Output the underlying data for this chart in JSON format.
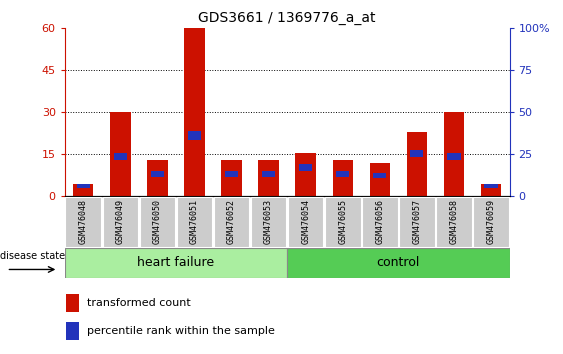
{
  "title": "GDS3661 / 1369776_a_at",
  "samples": [
    "GSM476048",
    "GSM476049",
    "GSM476050",
    "GSM476051",
    "GSM476052",
    "GSM476053",
    "GSM476054",
    "GSM476055",
    "GSM476056",
    "GSM476057",
    "GSM476058",
    "GSM476059"
  ],
  "red_values": [
    4.5,
    30.0,
    13.0,
    60.0,
    13.0,
    13.0,
    15.5,
    13.0,
    12.0,
    23.0,
    30.0,
    4.5
  ],
  "blue_bottoms": [
    3.0,
    13.0,
    7.0,
    20.0,
    7.0,
    7.0,
    9.0,
    7.0,
    6.5,
    14.0,
    13.0,
    3.0
  ],
  "blue_heights": [
    1.5,
    2.5,
    2.0,
    3.5,
    2.0,
    2.0,
    2.5,
    2.0,
    2.0,
    2.5,
    2.5,
    1.5
  ],
  "heart_failure_count": 6,
  "control_count": 6,
  "ylim_left": [
    0,
    60
  ],
  "ylim_right": [
    0,
    100
  ],
  "yticks_left": [
    0,
    15,
    30,
    45,
    60
  ],
  "yticks_right": [
    0,
    25,
    50,
    75,
    100
  ],
  "bar_color_red": "#CC1100",
  "bar_color_blue": "#2233BB",
  "bar_width": 0.55,
  "legend_labels": [
    "transformed count",
    "percentile rank within the sample"
  ],
  "disease_state_label": "disease state",
  "tick_color_left": "#CC1100",
  "tick_color_right": "#2233BB",
  "sample_bg_color": "#CCCCCC",
  "hf_color": "#AAEEA0",
  "ctrl_color": "#55CC55",
  "border_color": "#888888"
}
